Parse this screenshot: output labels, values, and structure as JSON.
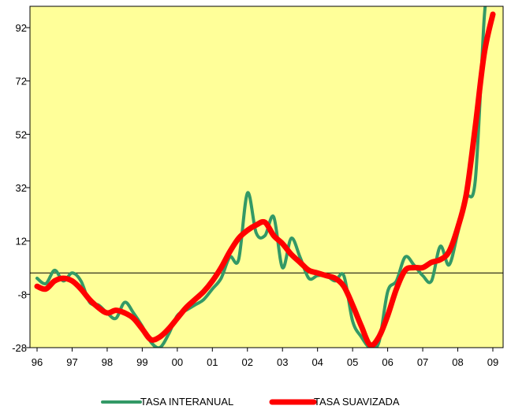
{
  "chart_data": {
    "type": "line",
    "title": "",
    "xlabel": "",
    "ylabel": "",
    "x_tick_labels": [
      "96",
      "97",
      "98",
      "99",
      "00",
      "01",
      "02",
      "03",
      "04",
      "05",
      "06",
      "07",
      "08",
      "09"
    ],
    "y_tick_values": [
      -28,
      -8,
      12,
      32,
      52,
      72,
      92
    ],
    "y_tick_labels": [
      "-28",
      "-8",
      "12",
      "32",
      "52",
      "72",
      "92"
    ],
    "xlim": [
      1996,
      2009.1
    ],
    "ylim": [
      -28,
      100
    ],
    "reference_line_y": 0,
    "plot_background": "#ffff99",
    "grid": false,
    "legend_position": "bottom-center",
    "series": [
      {
        "name": "TASA INTERANUAL",
        "color": "#339966",
        "line_width": "thin",
        "points": [
          [
            1996.0,
            -2
          ],
          [
            1996.25,
            -4
          ],
          [
            1996.5,
            1
          ],
          [
            1996.75,
            -3
          ],
          [
            1997.0,
            0
          ],
          [
            1997.25,
            -3
          ],
          [
            1997.5,
            -11
          ],
          [
            1997.75,
            -12
          ],
          [
            1998.0,
            -15
          ],
          [
            1998.25,
            -17
          ],
          [
            1998.5,
            -11
          ],
          [
            1998.75,
            -15
          ],
          [
            1999.0,
            -20
          ],
          [
            1999.25,
            -26
          ],
          [
            1999.5,
            -28
          ],
          [
            1999.75,
            -23
          ],
          [
            2000.0,
            -16
          ],
          [
            2000.25,
            -14
          ],
          [
            2000.5,
            -12
          ],
          [
            2000.75,
            -10
          ],
          [
            2001.0,
            -6
          ],
          [
            2001.25,
            -2
          ],
          [
            2001.5,
            6
          ],
          [
            2001.75,
            5
          ],
          [
            2002.0,
            30
          ],
          [
            2002.25,
            15
          ],
          [
            2002.5,
            14
          ],
          [
            2002.75,
            21
          ],
          [
            2003.0,
            2
          ],
          [
            2003.25,
            13
          ],
          [
            2003.5,
            6
          ],
          [
            2003.75,
            -2
          ],
          [
            2004.0,
            -1
          ],
          [
            2004.25,
            -1
          ],
          [
            2004.5,
            -3
          ],
          [
            2004.75,
            -1
          ],
          [
            2005.0,
            -18
          ],
          [
            2005.25,
            -24
          ],
          [
            2005.5,
            -28
          ],
          [
            2005.75,
            -26
          ],
          [
            2006.0,
            -7
          ],
          [
            2006.25,
            -3
          ],
          [
            2006.5,
            6
          ],
          [
            2006.75,
            3
          ],
          [
            2007.0,
            -1
          ],
          [
            2007.25,
            -3
          ],
          [
            2007.5,
            10
          ],
          [
            2007.75,
            3
          ],
          [
            2008.0,
            15
          ],
          [
            2008.25,
            28
          ],
          [
            2008.5,
            35
          ],
          [
            2008.75,
            95
          ],
          [
            2008.85,
            103
          ]
        ]
      },
      {
        "name": "TASA SUAVIZADA",
        "color": "#ff0000",
        "line_width": "thick",
        "points": [
          [
            1996.0,
            -5
          ],
          [
            1996.25,
            -6
          ],
          [
            1996.5,
            -3
          ],
          [
            1996.75,
            -2
          ],
          [
            1997.0,
            -3
          ],
          [
            1997.25,
            -6
          ],
          [
            1997.5,
            -10
          ],
          [
            1997.75,
            -13
          ],
          [
            1998.0,
            -15
          ],
          [
            1998.25,
            -14
          ],
          [
            1998.5,
            -15
          ],
          [
            1998.75,
            -17
          ],
          [
            1999.0,
            -21
          ],
          [
            1999.25,
            -25
          ],
          [
            1999.5,
            -24
          ],
          [
            1999.75,
            -21
          ],
          [
            2000.0,
            -17
          ],
          [
            2000.25,
            -13
          ],
          [
            2000.5,
            -10
          ],
          [
            2000.75,
            -7
          ],
          [
            2001.0,
            -3
          ],
          [
            2001.25,
            2
          ],
          [
            2001.5,
            8
          ],
          [
            2001.75,
            13
          ],
          [
            2002.0,
            16
          ],
          [
            2002.25,
            18
          ],
          [
            2002.5,
            19
          ],
          [
            2002.75,
            14
          ],
          [
            2003.0,
            11
          ],
          [
            2003.25,
            7
          ],
          [
            2003.5,
            4
          ],
          [
            2003.75,
            1
          ],
          [
            2004.0,
            0
          ],
          [
            2004.25,
            -1
          ],
          [
            2004.5,
            -2
          ],
          [
            2004.75,
            -5
          ],
          [
            2005.0,
            -12
          ],
          [
            2005.25,
            -20
          ],
          [
            2005.5,
            -27
          ],
          [
            2005.75,
            -24
          ],
          [
            2006.0,
            -16
          ],
          [
            2006.25,
            -6
          ],
          [
            2006.5,
            1
          ],
          [
            2006.75,
            2
          ],
          [
            2007.0,
            2
          ],
          [
            2007.25,
            4
          ],
          [
            2007.5,
            5
          ],
          [
            2007.75,
            8
          ],
          [
            2008.0,
            17
          ],
          [
            2008.25,
            30
          ],
          [
            2008.5,
            55
          ],
          [
            2008.75,
            82
          ],
          [
            2009.0,
            97
          ]
        ]
      }
    ]
  }
}
